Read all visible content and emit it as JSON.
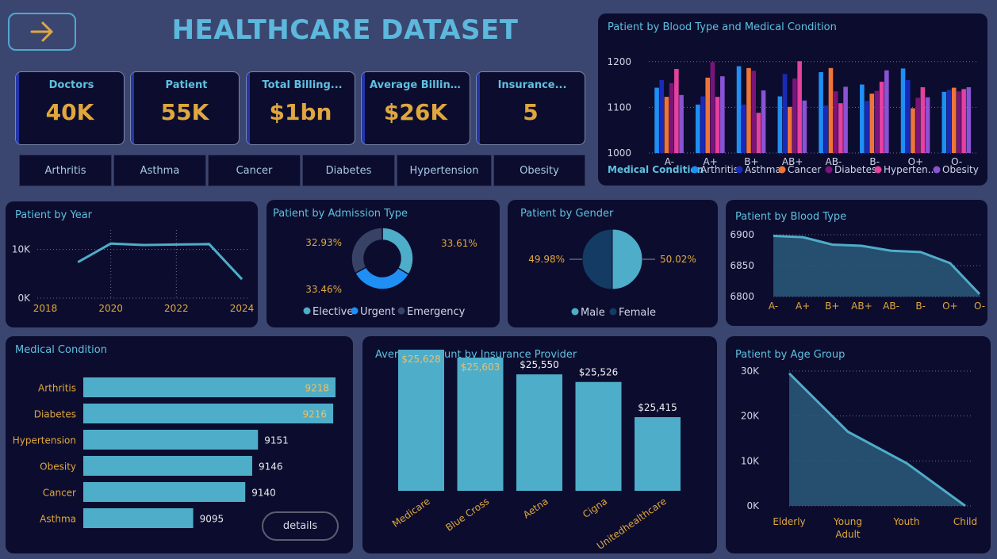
{
  "header": {
    "title": "HEALTHCARE DATASET",
    "nav_icon": "arrow-right-icon"
  },
  "kpis": [
    {
      "label": "Doctors",
      "value": "40K"
    },
    {
      "label": "Patient",
      "value": "55K"
    },
    {
      "label": "Total Billing...",
      "value": "$1bn"
    },
    {
      "label": "Average Billing...",
      "value": "$26K"
    },
    {
      "label": "Insurance...",
      "value": "5"
    }
  ],
  "slicers": [
    "Arthritis",
    "Asthma",
    "Cancer",
    "Diabetes",
    "Hypertension",
    "Obesity"
  ],
  "details_button": "details",
  "colors": {
    "accent": "#4eadc9",
    "gold": "#e0a73e",
    "title": "#5fc0e0",
    "panel": "#0c0d2e",
    "background": "#3b4670"
  },
  "panels": {
    "blood_condition": "Patient by Blood Type and Medical Condition",
    "year": "Patient by Year",
    "admission": "Patient by Admission Type",
    "gender": "Patient by Gender",
    "blood_type": "Patient by Blood Type",
    "medical_condition": "Medical Condition",
    "insurance": "Average Amount by Insurance Provider",
    "age_group": "Patient by Age Group"
  },
  "chart_data": [
    {
      "type": "bar",
      "title": "Patient by Blood Type and Medical Condition",
      "categories": [
        "A-",
        "A+",
        "B+",
        "AB+",
        "AB-",
        "B-",
        "O+",
        "O-"
      ],
      "yticks": [
        "1200",
        "1100",
        "1000"
      ],
      "ylim": [
        1000,
        1210
      ],
      "legend_title": "Medical Condition",
      "legend_position": "bottom",
      "series": [
        {
          "name": "Arthritis",
          "color": "#1f8ff5",
          "values": [
            1143,
            1106,
            1190,
            1124,
            1177,
            1150,
            1185,
            1134
          ]
        },
        {
          "name": "Asthma",
          "color": "#1a2ab8",
          "values": [
            1160,
            1124,
            1106,
            1173,
            1104,
            1114,
            1160,
            1138
          ]
        },
        {
          "name": "Cancer",
          "color": "#ee7538",
          "values": [
            1123,
            1165,
            1186,
            1101,
            1186,
            1130,
            1098,
            1143
          ]
        },
        {
          "name": "Diabetes",
          "color": "#7a147a",
          "values": [
            1153,
            1199,
            1180,
            1163,
            1135,
            1136,
            1121,
            1135
          ]
        },
        {
          "name": "Hypertension",
          "color": "#e640a0",
          "values": [
            1184,
            1123,
            1088,
            1201,
            1109,
            1156,
            1144,
            1140
          ]
        },
        {
          "name": "Obesity",
          "color": "#8a52d4",
          "values": [
            1127,
            1168,
            1137,
            1115,
            1145,
            1181,
            1122,
            1144
          ]
        }
      ],
      "legend_labels": [
        "Arthritis",
        "Asthma",
        "Cancer",
        "Diabetes",
        "Hyperten...",
        "Obesity"
      ]
    },
    {
      "type": "line",
      "title": "Patient by Year",
      "x": [
        2019,
        2020,
        2021,
        2022,
        2023,
        2024
      ],
      "values": [
        7400,
        11200,
        10900,
        11000,
        11100,
        3900
      ],
      "xticks": [
        "2018",
        "2020",
        "2022",
        "2024"
      ],
      "yticks": [
        "10K",
        "0K"
      ],
      "xlim": [
        2018,
        2024
      ],
      "ylim": [
        0,
        14000
      ]
    },
    {
      "type": "pie",
      "title": "Patient by Admission Type",
      "donut": true,
      "slices": [
        {
          "name": "Elective",
          "value": 33.61,
          "label": "33.61%",
          "color": "#4eadc9"
        },
        {
          "name": "Urgent",
          "value": 33.46,
          "label": "33.46%",
          "color": "#1f8ff5"
        },
        {
          "name": "Emergency",
          "value": 32.93,
          "label": "32.93%",
          "color": "#374266"
        }
      ]
    },
    {
      "type": "pie",
      "title": "Patient by Gender",
      "slices": [
        {
          "name": "Male",
          "value": 50.02,
          "label": "50.02%",
          "color": "#4eadc9"
        },
        {
          "name": "Female",
          "value": 49.98,
          "label": "49.98%",
          "color": "#133b63"
        }
      ]
    },
    {
      "type": "area",
      "title": "Patient by Blood Type",
      "categories": [
        "A-",
        "A+",
        "B+",
        "AB+",
        "AB-",
        "B-",
        "O+",
        "O-"
      ],
      "values": [
        6898,
        6896,
        6884,
        6882,
        6874,
        6872,
        6854,
        6804
      ],
      "yticks": [
        "6900",
        "6850",
        "6800"
      ],
      "ylim": [
        6800,
        6900
      ]
    },
    {
      "type": "bar",
      "orientation": "horizontal",
      "title": "Medical Condition",
      "categories": [
        "Arthritis",
        "Diabetes",
        "Hypertension",
        "Obesity",
        "Cancer",
        "Asthma"
      ],
      "values": [
        9218,
        9216,
        9151,
        9146,
        9140,
        9095
      ],
      "labels": [
        "9218",
        "9216",
        "9151",
        "9146",
        "9140",
        "9095"
      ]
    },
    {
      "type": "bar",
      "title": "Average Amount by Insurance Provider",
      "categories": [
        "Medicare",
        "Blue Cross",
        "Aetna",
        "Cigna",
        "Unitedhealthcare"
      ],
      "values": [
        25628,
        25603,
        25550,
        25526,
        25415
      ],
      "labels": [
        "$25,628",
        "$25,603",
        "$25,550",
        "$25,526",
        "$25,415"
      ]
    },
    {
      "type": "area",
      "title": "Patient by Age Group",
      "categories": [
        "Elderly",
        "Young Adult",
        "Youth",
        "Child"
      ],
      "category_lines": [
        [
          "Elderly"
        ],
        [
          "Young",
          "Adult"
        ],
        [
          "Youth"
        ],
        [
          "Child"
        ]
      ],
      "values": [
        29500,
        16500,
        9500,
        0
      ],
      "yticks": [
        "30K",
        "20K",
        "10K",
        "0K"
      ],
      "ylim": [
        0,
        30000
      ]
    }
  ]
}
